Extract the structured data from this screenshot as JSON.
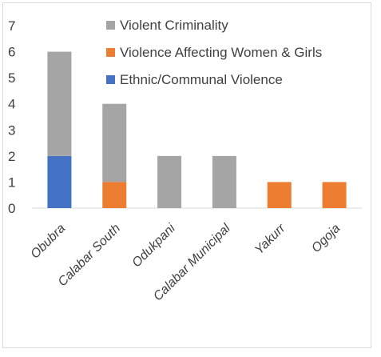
{
  "chart_data": {
    "type": "bar",
    "stacked": true,
    "categories": [
      "Obubra",
      "Calabar South",
      "Odukpani",
      "Calabar Municipal",
      "Yakurr",
      "Ogoja"
    ],
    "series": [
      {
        "name": "Ethnic/Communal Violence",
        "color": "#4472c4",
        "values": [
          2,
          0,
          0,
          0,
          0,
          0
        ]
      },
      {
        "name": "Violence Affecting Women & Girls",
        "color": "#ed7d31",
        "values": [
          0,
          1,
          0,
          0,
          1,
          1
        ]
      },
      {
        "name": "Violent Criminality",
        "color": "#a5a5a5",
        "values": [
          4,
          3,
          2,
          2,
          0,
          0
        ]
      }
    ],
    "legend_order": [
      "Violent Criminality",
      "Violence Affecting Women & Girls",
      "Ethnic/Communal Violence"
    ],
    "ylim": [
      0,
      7
    ],
    "yticks": [
      "0",
      "1",
      "2",
      "3",
      "4",
      "5",
      "6",
      "7"
    ],
    "legend_position": "top-right",
    "grid": false
  }
}
